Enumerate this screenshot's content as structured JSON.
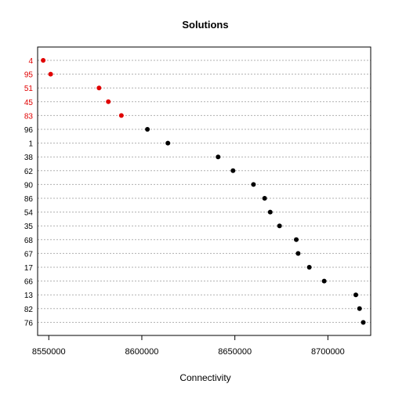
{
  "chart_data": {
    "type": "scatter",
    "title": "Solutions",
    "xlabel": "Connectivity",
    "ylabel": "",
    "xlim": [
      8544000,
      8723000
    ],
    "xticks": [
      8550000,
      8600000,
      8650000,
      8700000
    ],
    "xtick_labels": [
      "8550000",
      "8600000",
      "8650000",
      "8700000"
    ],
    "grid": "horizontal dotted",
    "colors": {
      "highlight": "#e00000",
      "normal": "#000000",
      "grid": "#b0b0b0"
    },
    "points": [
      {
        "label": "4",
        "x": 8547000,
        "highlight": true
      },
      {
        "label": "95",
        "x": 8551000,
        "highlight": true
      },
      {
        "label": "51",
        "x": 8577000,
        "highlight": true
      },
      {
        "label": "45",
        "x": 8582000,
        "highlight": true
      },
      {
        "label": "83",
        "x": 8589000,
        "highlight": true
      },
      {
        "label": "96",
        "x": 8603000,
        "highlight": false
      },
      {
        "label": "1",
        "x": 8614000,
        "highlight": false
      },
      {
        "label": "38",
        "x": 8641000,
        "highlight": false
      },
      {
        "label": "62",
        "x": 8649000,
        "highlight": false
      },
      {
        "label": "90",
        "x": 8660000,
        "highlight": false
      },
      {
        "label": "86",
        "x": 8666000,
        "highlight": false
      },
      {
        "label": "54",
        "x": 8669000,
        "highlight": false
      },
      {
        "label": "35",
        "x": 8674000,
        "highlight": false
      },
      {
        "label": "68",
        "x": 8683000,
        "highlight": false
      },
      {
        "label": "67",
        "x": 8684000,
        "highlight": false
      },
      {
        "label": "17",
        "x": 8690000,
        "highlight": false
      },
      {
        "label": "66",
        "x": 8698000,
        "highlight": false
      },
      {
        "label": "13",
        "x": 8715000,
        "highlight": false
      },
      {
        "label": "82",
        "x": 8717000,
        "highlight": false
      },
      {
        "label": "76",
        "x": 8719000,
        "highlight": false
      }
    ]
  }
}
